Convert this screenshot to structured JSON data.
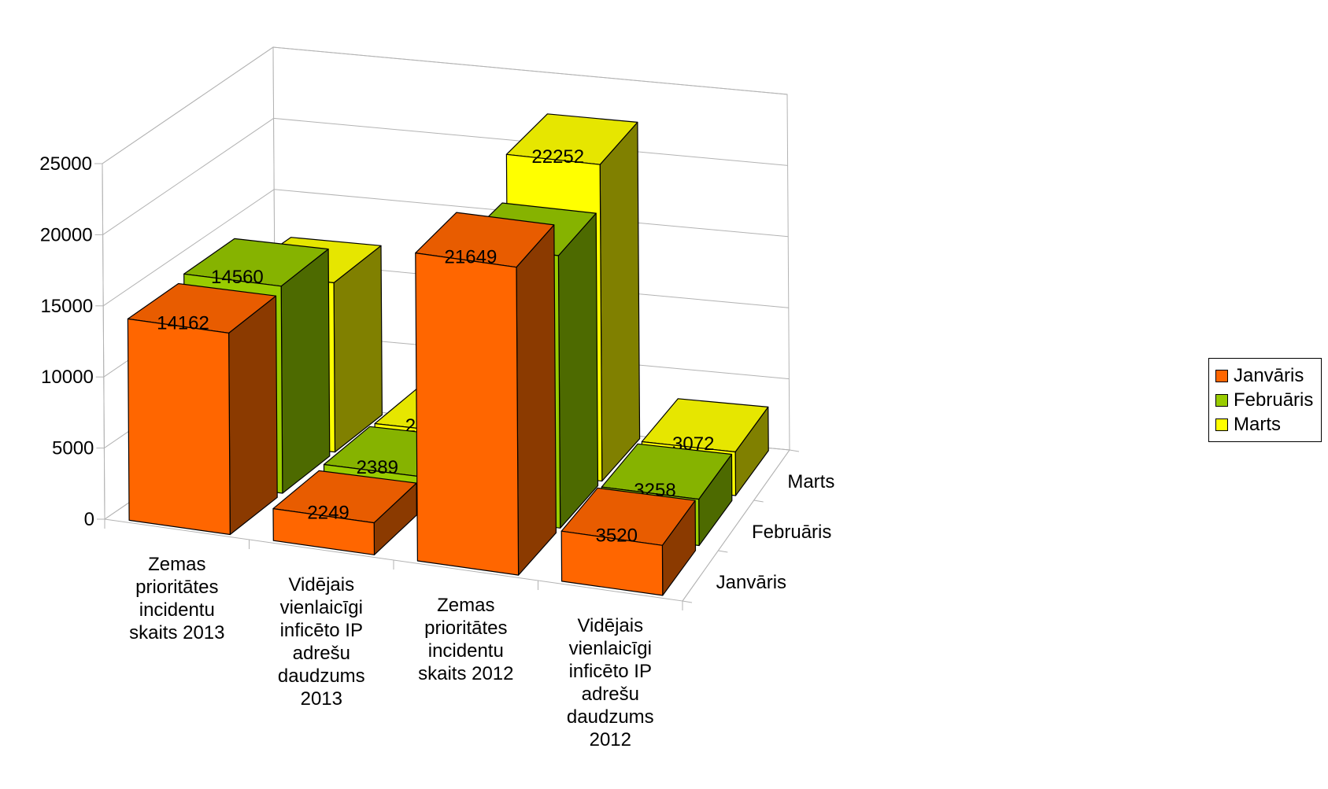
{
  "chart_data": {
    "type": "bar",
    "categories": [
      "Zemas prioritātes incidentu skaits 2013",
      "Vidējais vienlaicīgi inficēto IP adrešu daudzums 2013",
      "Zemas prioritātes incidentu skaits 2012",
      "Vidējais vienlaicīgi inficēto IP adrešu daudzums 2012"
    ],
    "category_lines": [
      [
        "Zemas",
        "prioritātes",
        "incidentu",
        "skaits 2013"
      ],
      [
        "Vidējais",
        "vienlaicīgi",
        "inficēto IP",
        "adrešu",
        "daudzums",
        "2013"
      ],
      [
        "Zemas",
        "prioritātes",
        "incidentu",
        "skaits 2012"
      ],
      [
        "Vidējais",
        "vienlaicīgi",
        "inficēto IP",
        "adrešu",
        "daudzums",
        "2012"
      ]
    ],
    "series": [
      {
        "name": "Janvāris",
        "values": [
          14162,
          2249,
          21649,
          3520
        ],
        "color": "#ff6600",
        "side": "#8b3a00",
        "top": "#e85c00"
      },
      {
        "name": "Februāris",
        "values": [
          14560,
          2389,
          19158,
          3258
        ],
        "color": "#99cc00",
        "side": "#4d6a00",
        "top": "#86b300"
      },
      {
        "name": "Marts",
        "values": [
          11894,
          2300,
          22252,
          3072
        ],
        "color": "#ffff00",
        "side": "#808000",
        "top": "#e6e600"
      }
    ],
    "depth_axis_labels": [
      "Janvāris",
      "Februāris",
      "Marts"
    ],
    "y_ticks": [
      0,
      5000,
      10000,
      15000,
      20000,
      25000
    ],
    "ylim": [
      0,
      25000
    ],
    "title": "",
    "xlabel": "",
    "ylabel": "",
    "grid": true,
    "legend": "right",
    "three_d": true
  },
  "legend": {
    "items": [
      {
        "label": "Janvāris",
        "color": "#ff6600"
      },
      {
        "label": "Februāris",
        "color": "#99cc00"
      },
      {
        "label": "Marts",
        "color": "#ffff00"
      }
    ]
  }
}
